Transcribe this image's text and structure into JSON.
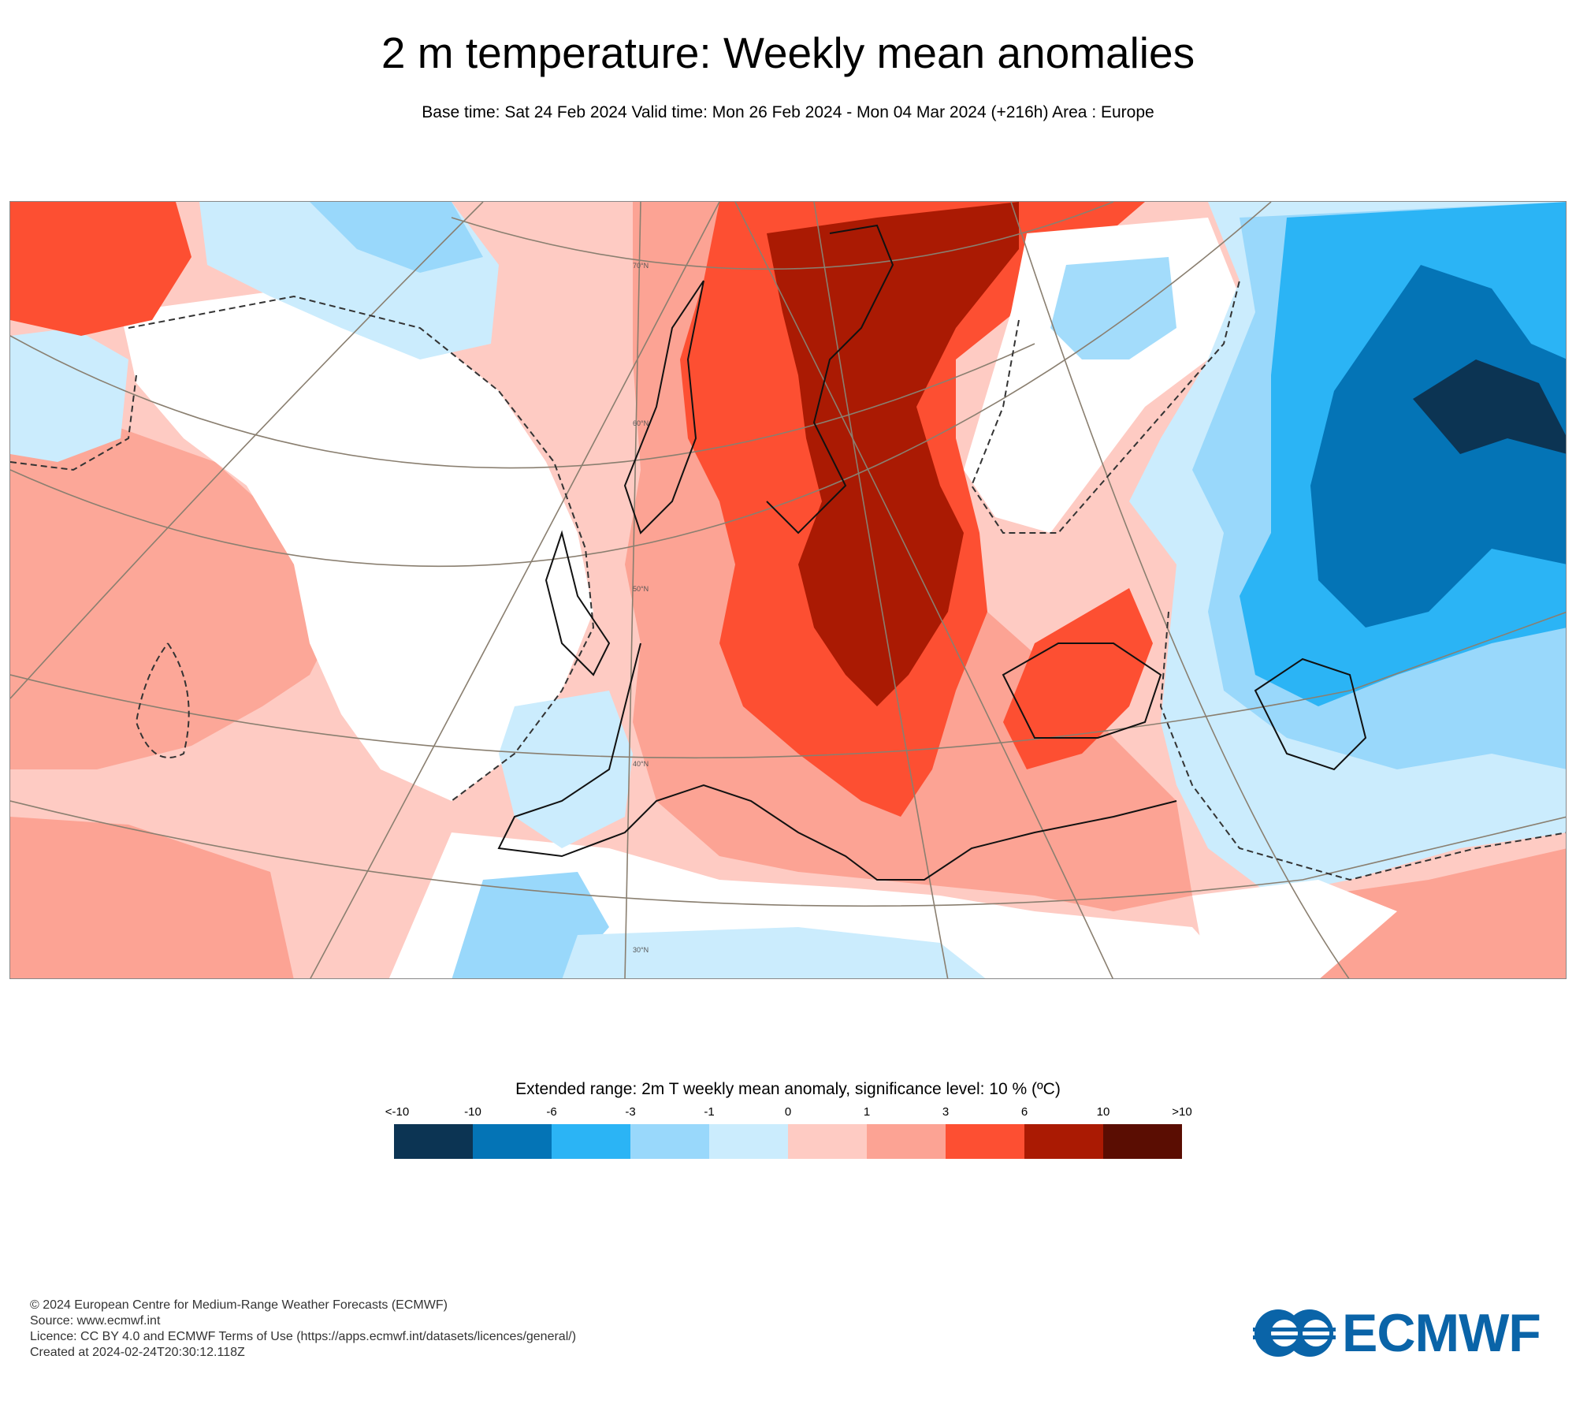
{
  "header": {
    "title": "2 m temperature: Weekly mean anomalies",
    "subtitle": "Base time: Sat 24 Feb 2024 Valid time: Mon 26 Feb 2024 - Mon 04 Mar 2024 (+216h) Area : Europe"
  },
  "map": {
    "lat_labels": [
      "70°N",
      "60°N",
      "50°N",
      "40°N",
      "30°N"
    ]
  },
  "legend": {
    "title": "Extended range: 2m T weekly mean anomaly, significance level: 10 % (ºC)",
    "ticks": [
      "<-10",
      "-10",
      "-6",
      "-3",
      "-1",
      "0",
      "1",
      "3",
      "6",
      "10",
      ">10"
    ],
    "colors": [
      "#0c3453",
      "#0474b6",
      "#2bb4f5",
      "#99d8fb",
      "#cbecfd",
      "#fecbc3",
      "#fca394",
      "#fd4f32",
      "#aa1a03",
      "#5a0d02"
    ]
  },
  "footer": {
    "lines": [
      "© 2024 European Centre for Medium-Range Weather Forecasts (ECMWF)",
      "Source: www.ecmwf.int",
      "Licence: CC BY 4.0 and ECMWF Terms of Use (https://apps.ecmwf.int/datasets/licences/general/)",
      "Created at 2024-02-24T20:30:12.118Z"
    ]
  },
  "logo": {
    "text": "ECMWF",
    "color": "#0a64a8"
  }
}
